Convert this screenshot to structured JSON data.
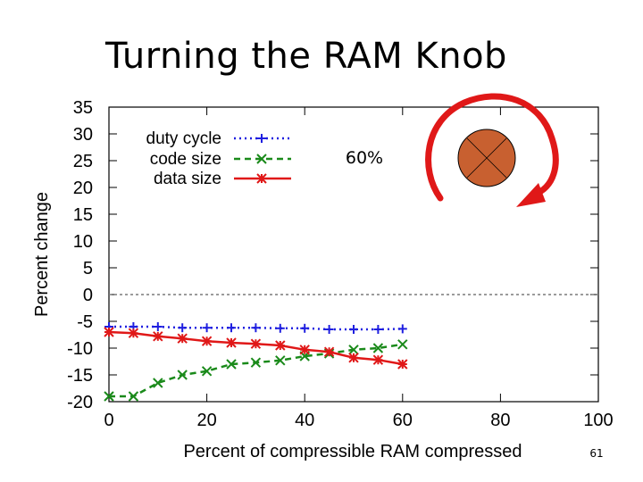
{
  "slide": {
    "title": "Turning the RAM Knob",
    "page_number": "61"
  },
  "colors": {
    "duty_cycle": "#1f1fe0",
    "code_size": "#1a8a1a",
    "data_size": "#e01818",
    "zero_line": "#7a7a7a",
    "knob_arrow": "#e01818",
    "knob_fill": "#c86030"
  },
  "icons": {
    "knob": "rotary-knob-icon",
    "arrow": "rotation-arrow-icon"
  },
  "chart_data": {
    "type": "line",
    "title": "",
    "xlabel": "Percent of compressible RAM compressed",
    "ylabel": "Percent change",
    "xlim": [
      0,
      100
    ],
    "ylim": [
      -20,
      35
    ],
    "xticks": [
      "0",
      "20",
      "40",
      "60",
      "80",
      "100"
    ],
    "yticks": [
      "35",
      "30",
      "25",
      "20",
      "15",
      "10",
      "5",
      "0",
      "-5",
      "-10",
      "-15",
      "-20"
    ],
    "legend_position": "top-left",
    "annotation": "60%",
    "x": [
      0,
      5,
      10,
      15,
      20,
      25,
      30,
      35,
      40,
      45,
      50,
      55,
      60
    ],
    "series": [
      {
        "name": "duty cycle",
        "style": "dotted",
        "marker": "+",
        "values": [
          -6,
          -6,
          -6,
          -6.2,
          -6.2,
          -6.2,
          -6.2,
          -6.3,
          -6.3,
          -6.5,
          -6.5,
          -6.5,
          -6.4
        ]
      },
      {
        "name": "code size",
        "style": "dashed",
        "marker": "x",
        "values": [
          -19,
          -19,
          -16.5,
          -15,
          -14.3,
          -13,
          -12.7,
          -12.3,
          -11.5,
          -11,
          -10.3,
          -10,
          -9.3
        ]
      },
      {
        "name": "data size",
        "style": "solid",
        "marker": "*",
        "values": [
          -7,
          -7.2,
          -7.8,
          -8.2,
          -8.7,
          -9,
          -9.2,
          -9.5,
          -10.3,
          -10.7,
          -11.8,
          -12.2,
          -13
        ]
      }
    ]
  }
}
